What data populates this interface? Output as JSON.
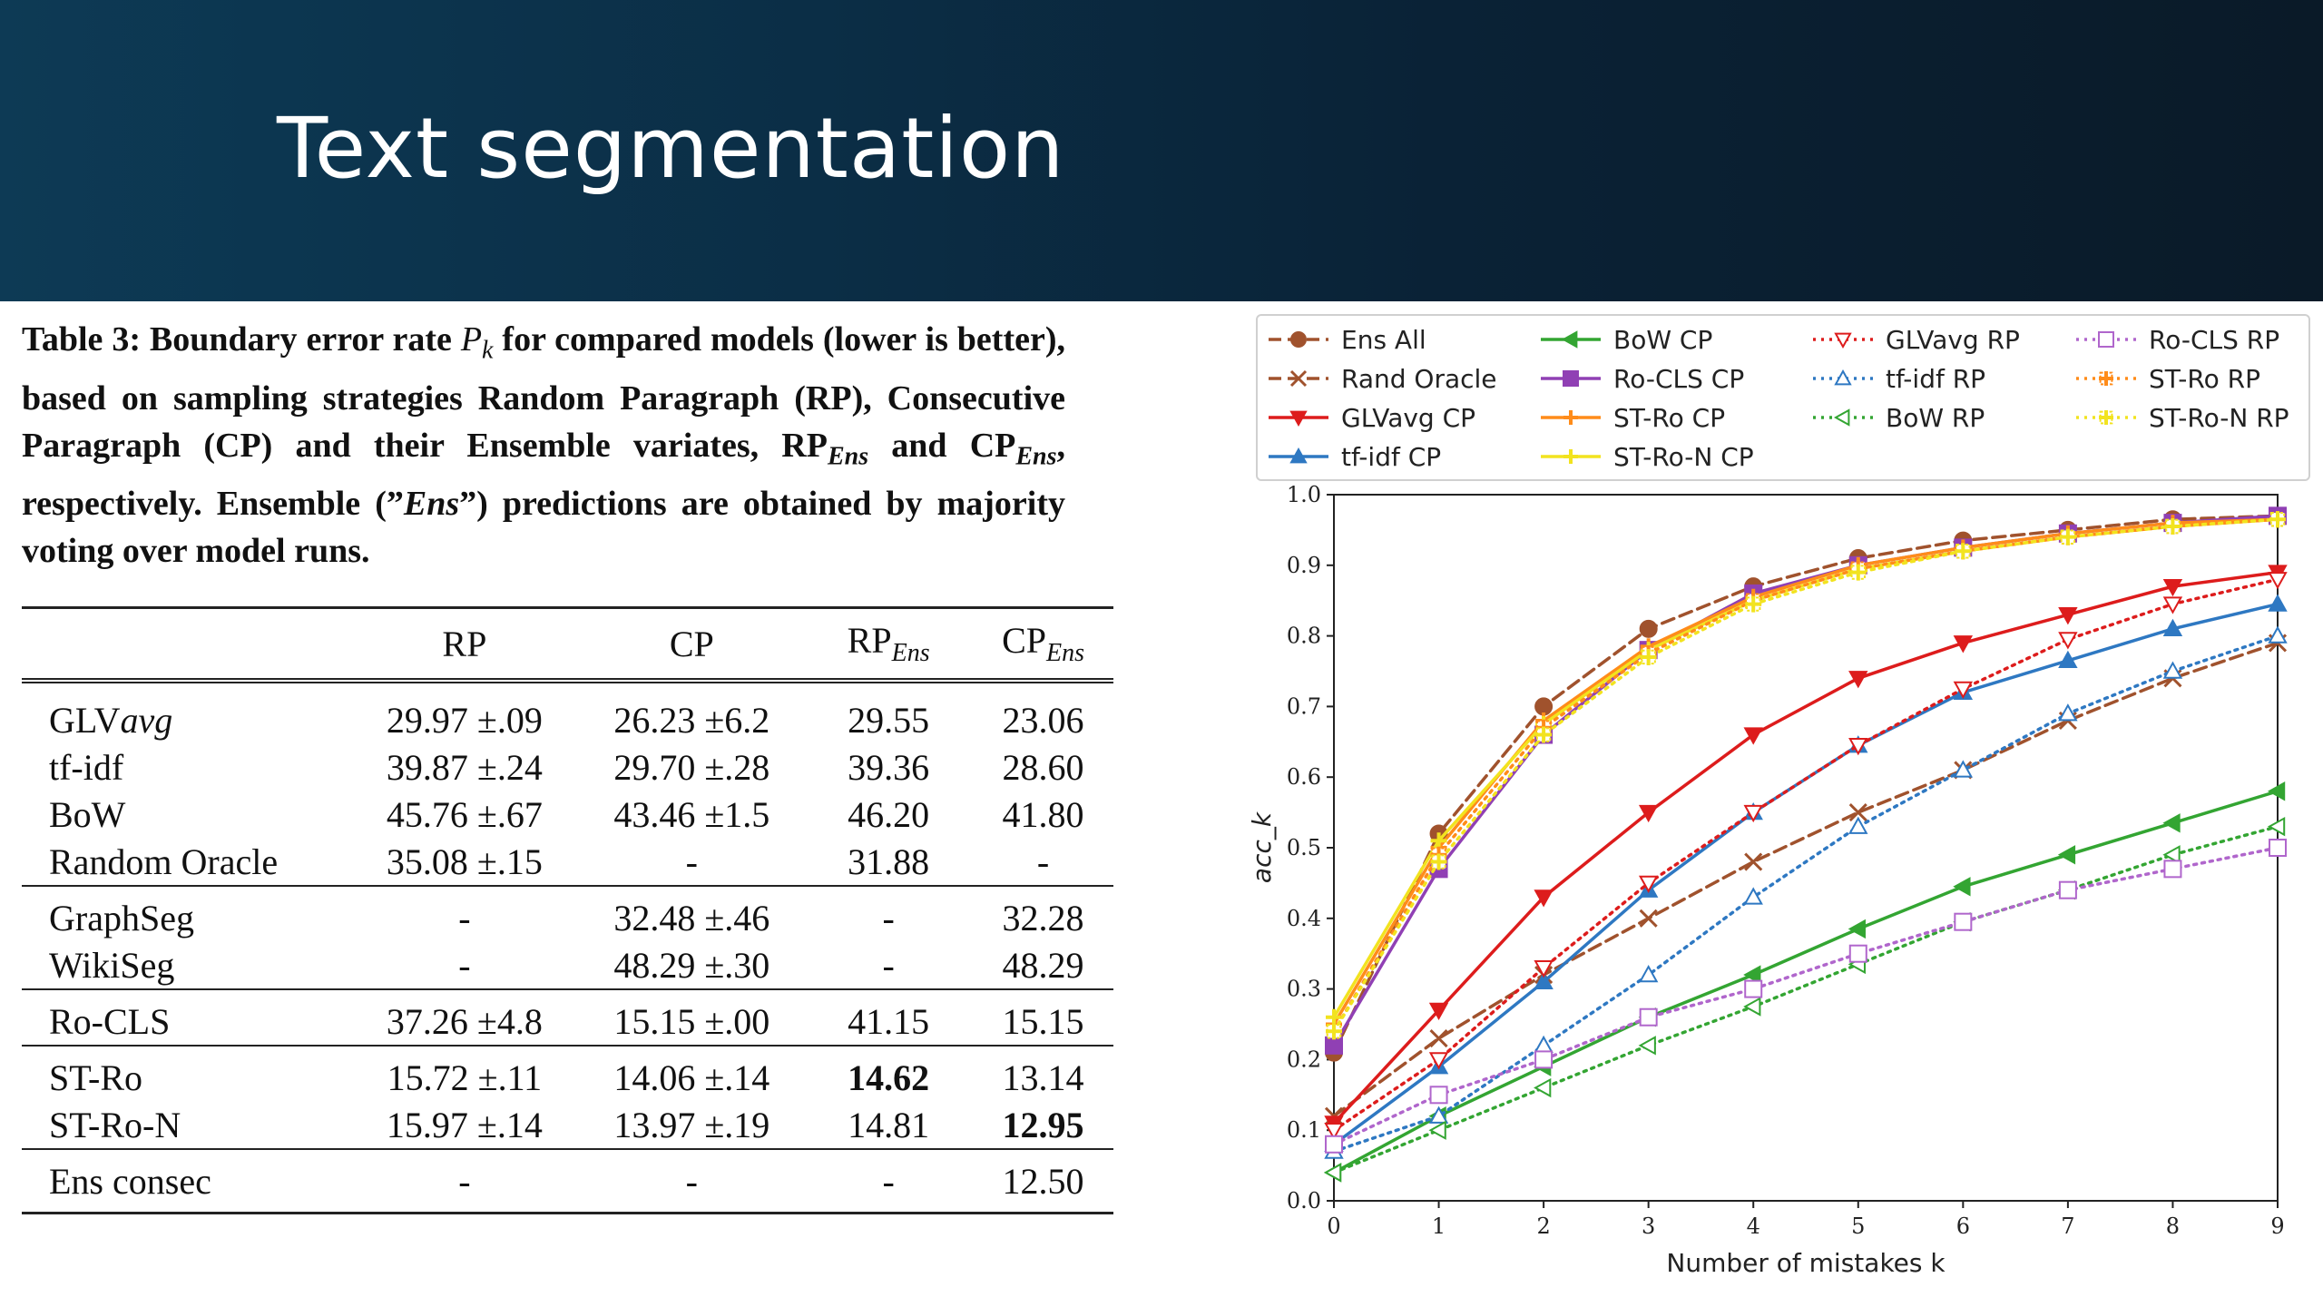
{
  "slide": {
    "title": "Text segmentation"
  },
  "caption": {
    "part1": "Table 3: Boundary error rate ",
    "pk": "P",
    "pk_sub": "k",
    "part2": " for compared models (lower is better), based on sampling strategies Random Paragraph (RP), Consecutive Paragraph (CP) and their Ensemble variates, RP",
    "ens1": "Ens",
    "part3": " and CP",
    "ens2": "Ens",
    "part4": ", respectively. Ensemble (”",
    "ens3": "Ens",
    "part5": "”) predictions are obtained by majority voting over model runs."
  },
  "table": {
    "headers": {
      "rp": "RP",
      "cp": "CP",
      "rp_ens": "RP",
      "cp_ens": "CP",
      "ens_sub": "Ens"
    },
    "rows": [
      {
        "name": "GLV",
        "name_sub": "avg",
        "rp": "29.97 ±.09",
        "cp": "26.23 ±6.2",
        "rp_ens": "29.55",
        "cp_ens": "23.06"
      },
      {
        "name": "tf-idf",
        "rp": "39.87 ±.24",
        "cp": "29.70 ±.28",
        "rp_ens": "39.36",
        "cp_ens": "28.60"
      },
      {
        "name": "BoW",
        "rp": "45.76 ±.67",
        "cp": "43.46 ±1.5",
        "rp_ens": "46.20",
        "cp_ens": "41.80"
      },
      {
        "name": "Random Oracle",
        "rp": "35.08 ±.15",
        "cp": "-",
        "rp_ens": "31.88",
        "cp_ens": "-"
      },
      {
        "name": "GraphSeg",
        "rp": "-",
        "cp": "32.48 ±.46",
        "rp_ens": "-",
        "cp_ens": "32.28"
      },
      {
        "name": "WikiSeg",
        "rp": "-",
        "cp": "48.29 ±.30",
        "rp_ens": "-",
        "cp_ens": "48.29"
      },
      {
        "name": "Ro-CLS",
        "rp": "37.26 ±4.8",
        "cp": "15.15 ±.00",
        "rp_ens": "41.15",
        "cp_ens": "15.15"
      },
      {
        "name": "ST-Ro",
        "rp": "15.72 ±.11",
        "cp": "14.06 ±.14",
        "rp_ens": "14.62",
        "cp_ens": "13.14"
      },
      {
        "name": "ST-Ro-N",
        "rp": "15.97 ±.14",
        "cp": "13.97 ±.19",
        "rp_ens": "14.81",
        "cp_ens": "12.95"
      },
      {
        "name": "Ens consec",
        "rp": "-",
        "cp": "-",
        "rp_ens": "-",
        "cp_ens": "12.50"
      }
    ]
  },
  "chart_data": {
    "type": "line",
    "x": [
      0,
      1,
      2,
      3,
      4,
      5,
      6,
      7,
      8,
      9
    ],
    "xlim": [
      0,
      9
    ],
    "ylim": [
      0.0,
      1.0
    ],
    "xlabel": "Number of mistakes k",
    "ylabel": "acc_k",
    "xticks": [
      "0",
      "1",
      "2",
      "3",
      "4",
      "5",
      "6",
      "7",
      "8",
      "9"
    ],
    "yticks": [
      "0.0",
      "0.1",
      "0.2",
      "0.3",
      "0.4",
      "0.5",
      "0.6",
      "0.7",
      "0.8",
      "0.9",
      "1.0"
    ],
    "legend_position": "top",
    "grid": false,
    "series": [
      {
        "name": "Ens All",
        "color": "#a0522d",
        "dash": "dashed",
        "marker": "circle",
        "fill": true,
        "values": [
          0.21,
          0.52,
          0.7,
          0.81,
          0.87,
          0.91,
          0.935,
          0.95,
          0.965,
          0.97
        ]
      },
      {
        "name": "Rand Oracle",
        "color": "#a0522d",
        "dash": "dashed",
        "marker": "x",
        "fill": false,
        "values": [
          0.12,
          0.23,
          0.32,
          0.4,
          0.48,
          0.55,
          0.61,
          0.68,
          0.74,
          0.79
        ]
      },
      {
        "name": "GLVavg CP",
        "color": "#dd1c1c",
        "dash": "solid",
        "marker": "tri-down",
        "fill": true,
        "values": [
          0.11,
          0.27,
          0.43,
          0.55,
          0.66,
          0.74,
          0.79,
          0.83,
          0.87,
          0.89
        ]
      },
      {
        "name": "tf-idf CP",
        "color": "#2e78c2",
        "dash": "solid",
        "marker": "tri-up",
        "fill": true,
        "values": [
          0.08,
          0.19,
          0.31,
          0.44,
          0.55,
          0.645,
          0.72,
          0.765,
          0.81,
          0.845
        ]
      },
      {
        "name": "BoW CP",
        "color": "#33a532",
        "dash": "solid",
        "marker": "tri-left",
        "fill": true,
        "values": [
          0.04,
          0.12,
          0.19,
          0.26,
          0.32,
          0.385,
          0.445,
          0.49,
          0.535,
          0.58
        ]
      },
      {
        "name": "Ro-CLS CP",
        "color": "#9040b4",
        "dash": "solid",
        "marker": "square",
        "fill": true,
        "values": [
          0.22,
          0.47,
          0.66,
          0.78,
          0.86,
          0.9,
          0.925,
          0.945,
          0.96,
          0.97
        ]
      },
      {
        "name": "ST-Ro CP",
        "color": "#ff8c1a",
        "dash": "solid",
        "marker": "plus",
        "fill": true,
        "values": [
          0.25,
          0.5,
          0.68,
          0.785,
          0.855,
          0.9,
          0.925,
          0.945,
          0.96,
          0.965
        ]
      },
      {
        "name": "ST-Ro-N CP",
        "color": "#f2e31f",
        "dash": "solid",
        "marker": "plus",
        "fill": true,
        "values": [
          0.26,
          0.51,
          0.675,
          0.78,
          0.85,
          0.895,
          0.92,
          0.94,
          0.955,
          0.965
        ]
      },
      {
        "name": "GLVavg RP",
        "color": "#dd1c1c",
        "dash": "dotted",
        "marker": "tri-down",
        "fill": false,
        "values": [
          0.1,
          0.2,
          0.33,
          0.45,
          0.55,
          0.645,
          0.725,
          0.795,
          0.845,
          0.88
        ]
      },
      {
        "name": "tf-idf RP",
        "color": "#2e78c2",
        "dash": "dotted",
        "marker": "tri-up",
        "fill": false,
        "values": [
          0.07,
          0.12,
          0.22,
          0.32,
          0.43,
          0.53,
          0.61,
          0.69,
          0.75,
          0.8
        ]
      },
      {
        "name": "BoW RP",
        "color": "#33a532",
        "dash": "dotted",
        "marker": "tri-left",
        "fill": false,
        "values": [
          0.04,
          0.1,
          0.16,
          0.22,
          0.275,
          0.335,
          0.395,
          0.44,
          0.49,
          0.53
        ]
      },
      {
        "name": "Ro-CLS RP",
        "color": "#b066cc",
        "dash": "dotted",
        "marker": "square",
        "fill": false,
        "values": [
          0.08,
          0.15,
          0.2,
          0.26,
          0.3,
          0.35,
          0.395,
          0.44,
          0.47,
          0.5
        ]
      },
      {
        "name": "ST-Ro RP",
        "color": "#ff8c1a",
        "dash": "dotted",
        "marker": "plus",
        "fill": false,
        "values": [
          0.24,
          0.49,
          0.67,
          0.775,
          0.85,
          0.895,
          0.92,
          0.94,
          0.955,
          0.965
        ]
      },
      {
        "name": "ST-Ro-N RP",
        "color": "#f2e31f",
        "dash": "dotted",
        "marker": "plus",
        "fill": false,
        "values": [
          0.24,
          0.48,
          0.66,
          0.77,
          0.845,
          0.89,
          0.92,
          0.94,
          0.955,
          0.965
        ]
      }
    ]
  }
}
